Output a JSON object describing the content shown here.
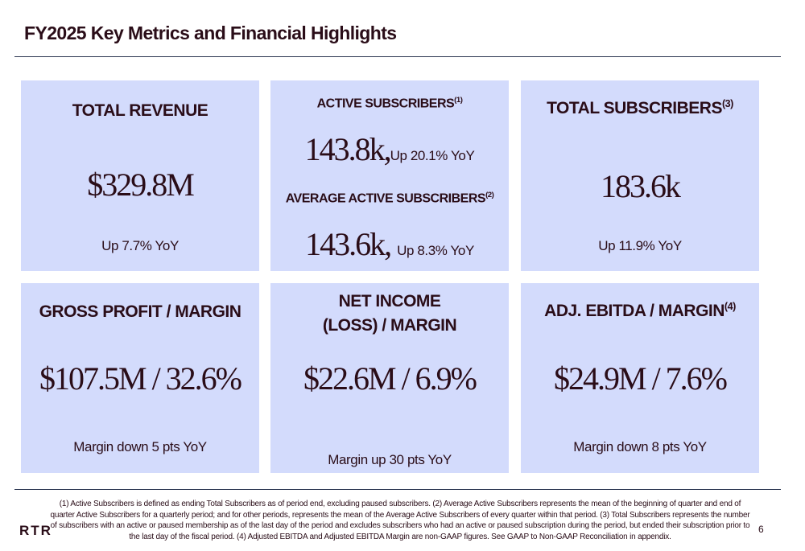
{
  "header": {
    "title": "FY2025 Key Metrics and Financial Highlights"
  },
  "cards": [
    {
      "label": "TOTAL REVENUE",
      "value": "$329.8M",
      "note": "Up 7.7% YoY"
    },
    {
      "label": "ACTIVE SUBSCRIBERS",
      "footnote_ref": "(1)",
      "value": "143.8k,",
      "note": "Up 20.1% YoY",
      "label2": "AVERAGE ACTIVE SUBSCRIBERS",
      "footnote_ref2": "(2)",
      "value2": "143.6k,",
      "note2": "Up 8.3% YoY"
    },
    {
      "label": "TOTAL SUBSCRIBERS",
      "footnote_ref": "(3)",
      "value": "183.6k",
      "note": "Up 11.9% YoY"
    },
    {
      "label": "GROSS PROFIT / MARGIN",
      "value": "$107.5M / 32.6%",
      "note": "Margin down 5 pts YoY"
    },
    {
      "label": "NET INCOME (LOSS) / MARGIN",
      "value": "$22.6M / 6.9%",
      "note": "Margin up 30 pts YoY"
    },
    {
      "label": "ADJ. EBITDA / MARGIN",
      "footnote_ref": "(4)",
      "value": "$24.9M / 7.6%",
      "note": "Margin down 8 pts YoY"
    }
  ],
  "footer": {
    "footnotes": "(1) Active Subscribers is defined as ending Total Subscribers as of period end, excluding paused subscribers. (2) Average Active Subscribers represents the mean of the beginning of quarter and end of quarter Active Subscribers for a quarterly period; and for other periods, represents the mean of the Average Active Subscribers of every quarter within that period. (3) Total Subscribers represents the number of subscribers with an active or paused membership as of the last day of the period and excludes subscribers who had an active or paused subscription during the period, but ended their subscription prior to the last day of the fiscal period. (4) Adjusted EBITDA and Adjusted EBITDA Margin are non-GAAP figures. See GAAP to Non-GAAP Reconciliation in appendix.",
    "logo": "RTR",
    "page": "6"
  }
}
